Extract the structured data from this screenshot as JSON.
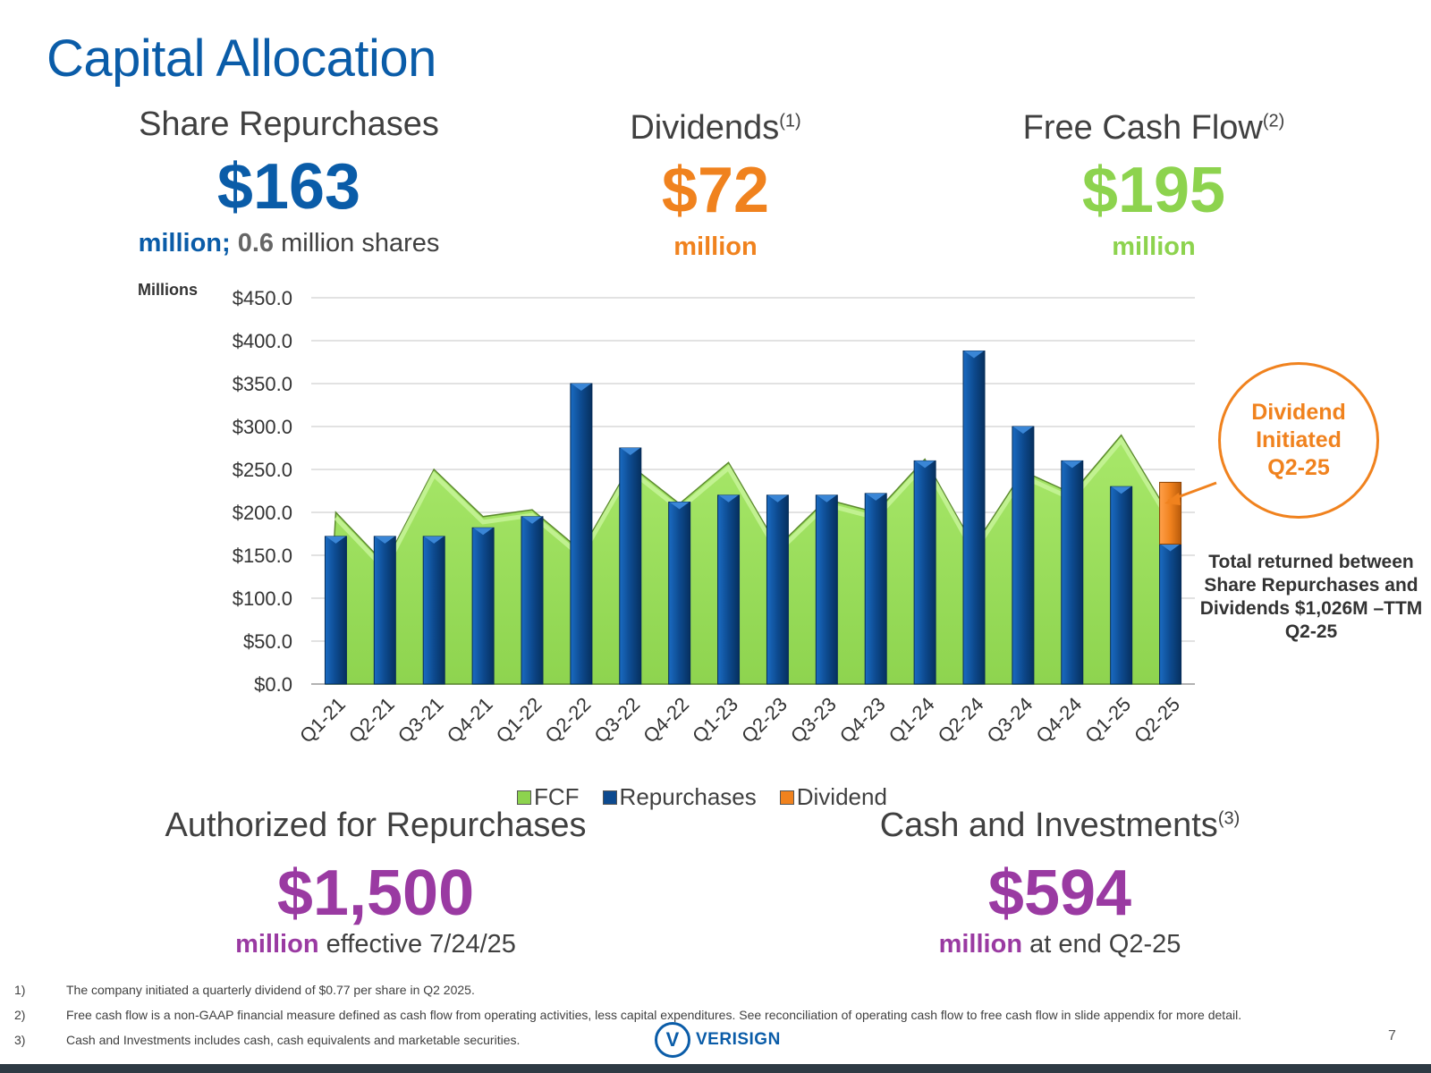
{
  "title": "Capital Allocation",
  "kpis": {
    "repurchases": {
      "label": "Share Repurchases",
      "value": "$163",
      "sub_bold": "million;",
      "sub_num": "0.6",
      "sub_rest": "million shares"
    },
    "dividends": {
      "label": "Dividends",
      "note": "(1)",
      "value": "$72",
      "sub": "million"
    },
    "fcf": {
      "label": "Free Cash Flow",
      "note": "(2)",
      "value": "$195",
      "sub": "million"
    },
    "authorized": {
      "label": "Authorized for Repurchases",
      "value": "$1,500",
      "sub_bold": "million",
      "sub_rest": "effective 7/24/25"
    },
    "cash": {
      "label": "Cash and Investments",
      "note": "(3)",
      "value": "$594",
      "sub_bold": "million",
      "sub_rest": "at end Q2-25"
    }
  },
  "colors": {
    "blue": "#0a5ca8",
    "orange": "#f0821e",
    "green": "#8dd34e",
    "purple": "#9a3aa2",
    "bar": "#0d4a8f",
    "fcf": "#9de15e"
  },
  "chart_data": {
    "type": "bar",
    "ylabel": "Millions",
    "ylim": [
      0,
      450
    ],
    "y_ticks": [
      "$0.0",
      "$50.0",
      "$100.0",
      "$150.0",
      "$200.0",
      "$250.0",
      "$300.0",
      "$350.0",
      "$400.0",
      "$450.0"
    ],
    "grid": true,
    "legend_position": "bottom",
    "categories": [
      "Q1-21",
      "Q2-21",
      "Q3-21",
      "Q4-21",
      "Q1-22",
      "Q2-22",
      "Q3-22",
      "Q4-22",
      "Q1-23",
      "Q2-23",
      "Q3-23",
      "Q4-23",
      "Q1-24",
      "Q2-24",
      "Q3-24",
      "Q4-24",
      "Q1-25",
      "Q2-25"
    ],
    "series": [
      {
        "name": "FCF",
        "chart": "area",
        "values": [
          200,
          140,
          250,
          195,
          203,
          155,
          255,
          210,
          258,
          160,
          215,
          200,
          262,
          160,
          248,
          222,
          290,
          195
        ]
      },
      {
        "name": "Repurchases",
        "chart": "bar",
        "values": [
          172,
          172,
          172,
          182,
          195,
          350,
          275,
          212,
          220,
          220,
          220,
          222,
          260,
          388,
          300,
          260,
          230,
          163
        ]
      },
      {
        "name": "Dividend",
        "chart": "bar-stacked",
        "values": [
          0,
          0,
          0,
          0,
          0,
          0,
          0,
          0,
          0,
          0,
          0,
          0,
          0,
          0,
          0,
          0,
          0,
          72
        ]
      }
    ],
    "annotations": {
      "callout": "Dividend Initiated Q2-25",
      "total_note": "Total returned between Share Repurchases and Dividends $1,026M –TTM Q2-25"
    }
  },
  "footnotes": [
    {
      "num": "1)",
      "text": "The company initiated a quarterly dividend of $0.77 per share in Q2 2025."
    },
    {
      "num": "2)",
      "text": "Free cash flow is a non-GAAP financial measure defined as cash flow from operating activities, less capital expenditures. See reconciliation of operating cash flow to free cash flow in slide appendix for more detail."
    },
    {
      "num": "3)",
      "text": "Cash and Investments includes cash, cash equivalents and marketable securities."
    }
  ],
  "logo": {
    "mark": "V",
    "text": "VERISIGN"
  },
  "page_number": "7"
}
